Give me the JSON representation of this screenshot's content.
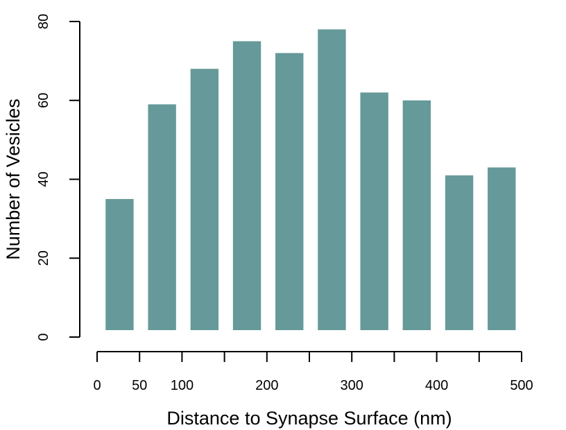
{
  "chart_data": {
    "type": "bar",
    "title": "",
    "xlabel": "Distance to Synapse Surface (nm)",
    "ylabel": "Number of Vesicles",
    "bars": [
      {
        "x_start": 10,
        "x_end": 43,
        "value": 35
      },
      {
        "x_start": 60,
        "x_end": 93,
        "value": 59
      },
      {
        "x_start": 110,
        "x_end": 143,
        "value": 68
      },
      {
        "x_start": 160,
        "x_end": 193,
        "value": 75
      },
      {
        "x_start": 210,
        "x_end": 243,
        "value": 72
      },
      {
        "x_start": 260,
        "x_end": 293,
        "value": 78
      },
      {
        "x_start": 310,
        "x_end": 343,
        "value": 62
      },
      {
        "x_start": 360,
        "x_end": 393,
        "value": 60
      },
      {
        "x_start": 410,
        "x_end": 443,
        "value": 41
      },
      {
        "x_start": 460,
        "x_end": 493,
        "value": 43
      }
    ],
    "bar_color": "#669999",
    "xlim": [
      0,
      500
    ],
    "ylim": [
      0,
      80
    ],
    "x_ticks": [
      0,
      50,
      100,
      150,
      200,
      250,
      300,
      350,
      400,
      450,
      500
    ],
    "x_tick_labels": [
      "0",
      "50",
      "100",
      "",
      "200",
      "",
      "300",
      "",
      "400",
      "",
      "500"
    ],
    "y_ticks": [
      0,
      20,
      40,
      60,
      80
    ],
    "y_tick_labels": [
      "0",
      "20",
      "40",
      "60",
      "80"
    ],
    "grid": false,
    "legend": "none"
  }
}
